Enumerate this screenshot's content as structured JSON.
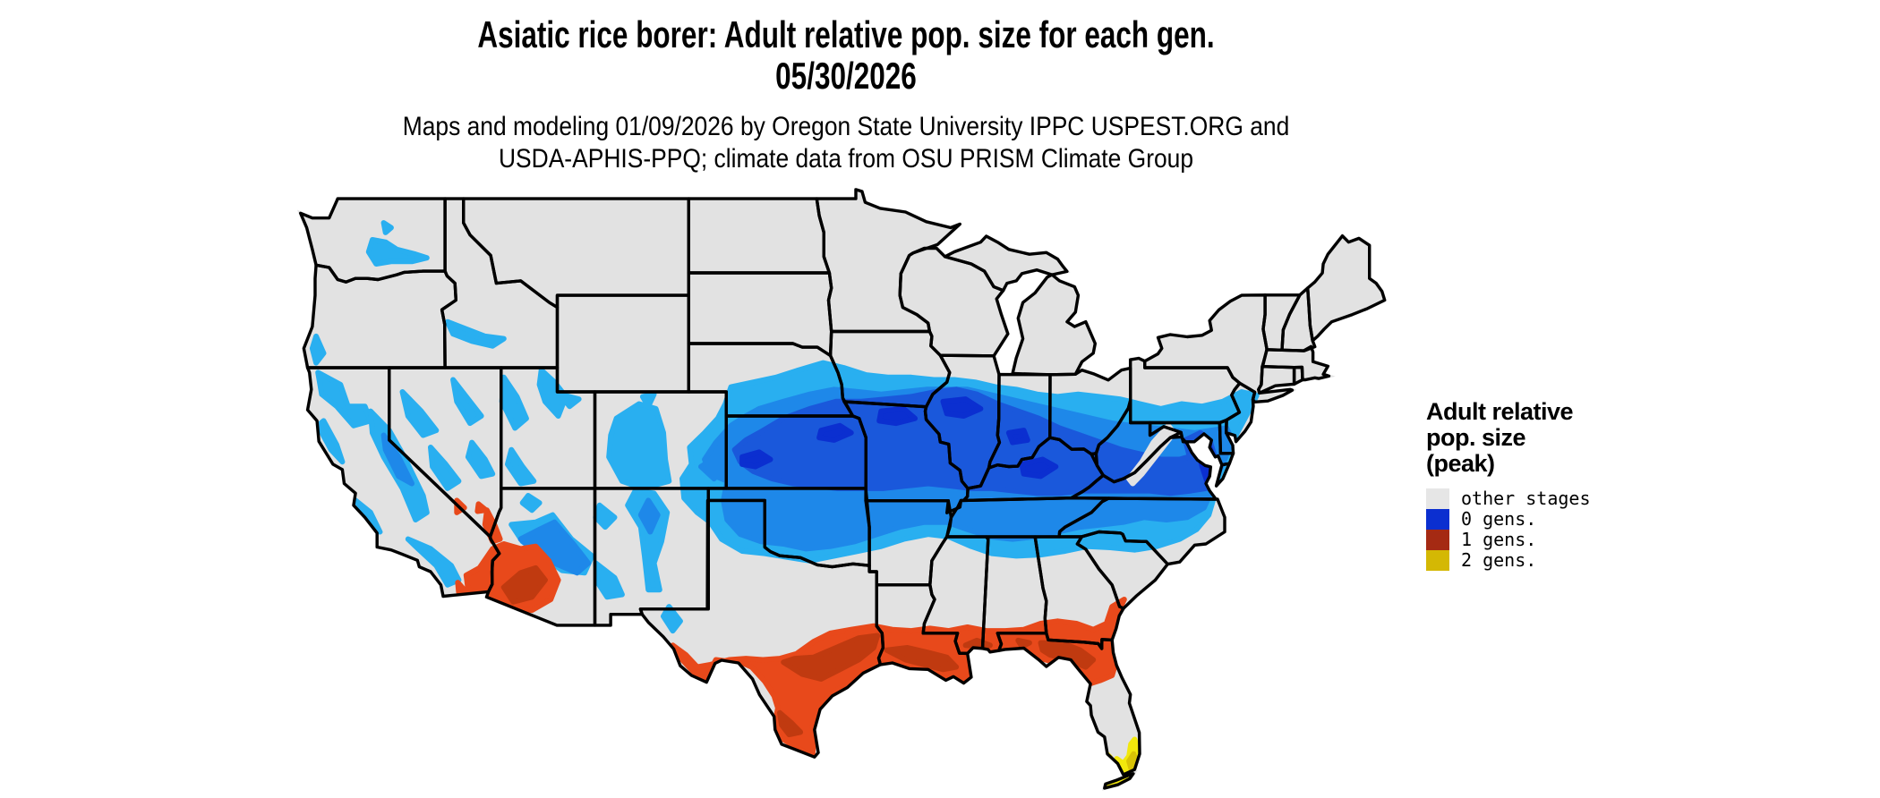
{
  "header": {
    "title": "Asiatic rice borer: Adult relative pop. size for each gen.",
    "date": "05/30/2026",
    "subtitle_line1": "Maps and modeling 01/09/2026 by Oregon State University IPPC USPEST.ORG and",
    "subtitle_line2": "USDA-APHIS-PPQ; climate data from OSU PRISM Climate Group"
  },
  "legend": {
    "title_lines": [
      "Adult relative",
      "pop. size",
      "(peak)"
    ],
    "items": [
      {
        "label": "other stages",
        "color": "#e6e6e6"
      },
      {
        "label": "0 gens.",
        "color": "#0b2fd0"
      },
      {
        "label": "1 gens.",
        "color": "#a52a13"
      },
      {
        "label": "2 gens.",
        "color": "#d4b804"
      }
    ]
  },
  "map": {
    "colors": {
      "base": "#e2e2e2",
      "border": "#000000",
      "gens0_light": "#29aff0",
      "gens0_mid": "#1e88e9",
      "gens0_deep": "#1a58db",
      "gens0_core": "#0b2fd0",
      "gens1_light": "#e8491b",
      "gens1_deep": "#c03a10",
      "gens2_light": "#f2e80c",
      "gens2_deep": "#d9c306"
    },
    "regions": [
      {
        "class": "0 gens. (blue shades)",
        "areas": "Central band from Kansas/Nebraska east through Missouri, Illinois, Indiana, Kentucky, Tennessee and Virginia to the Mid-Atlantic coast; mountain areas of the West (Sierra Nevada, Great Basin ranges, Colorado Rockies, Mogollon Rim, Wasatch)"
      },
      {
        "class": "1 gens. (orange/red)",
        "areas": "South-central Texas and Gulf Coast, southern Louisiana, coastal Mississippi/Alabama, Florida panhandle and north Florida, south Georgia coast; southwestern Arizona and southeastern California deserts"
      },
      {
        "class": "2 gens. (yellow)",
        "areas": "Southern tip of Florida and the Florida Keys"
      },
      {
        "class": "other stages (gray)",
        "areas": "Remainder of the contiguous United States"
      }
    ]
  }
}
